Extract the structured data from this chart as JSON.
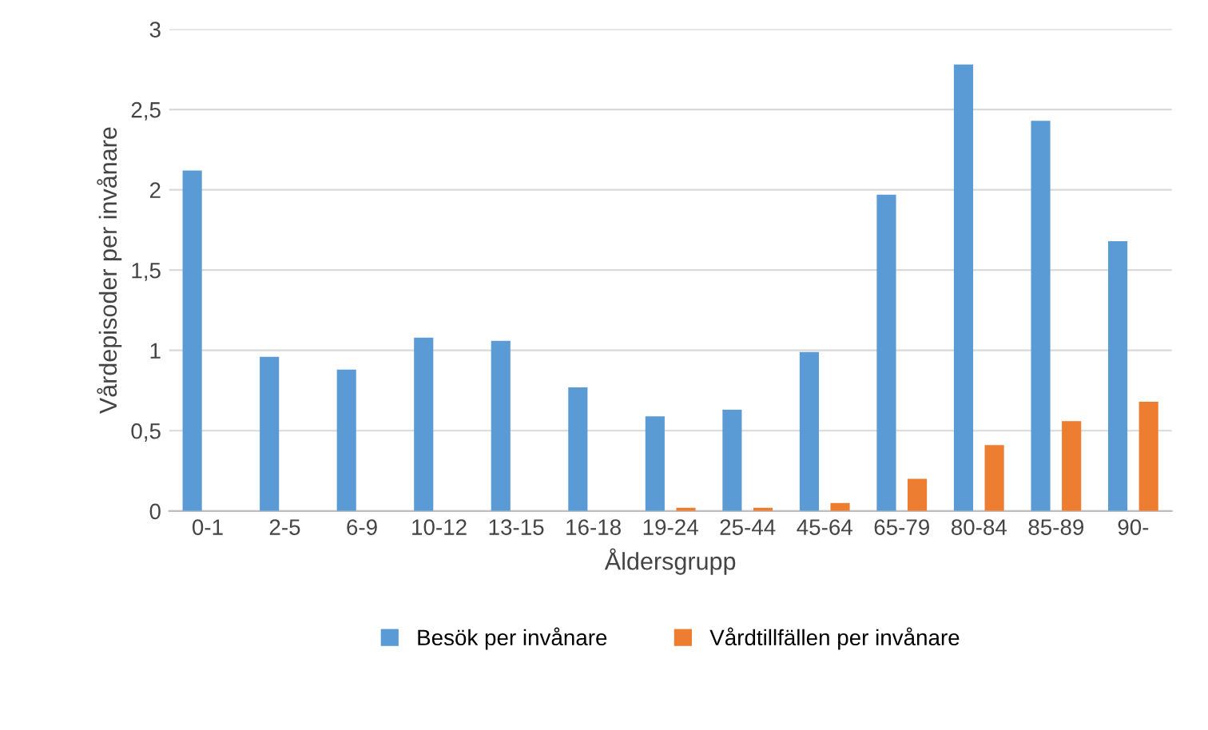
{
  "chart_data": {
    "type": "bar",
    "xlabel": "Åldersgrupp",
    "ylabel": "Vårdepisoder per invånare",
    "categories": [
      "0-1",
      "2-5",
      "6-9",
      "10-12",
      "13-15",
      "16-18",
      "19-24",
      "25-44",
      "45-64",
      "65-79",
      "80-84",
      "85-89",
      "90-"
    ],
    "series": [
      {
        "name": "Besök per invånare",
        "color": "#5b9bd5",
        "values": [
          2.12,
          0.96,
          0.88,
          1.08,
          1.06,
          0.77,
          0.59,
          0.63,
          0.99,
          1.97,
          2.78,
          2.43,
          1.68
        ]
      },
      {
        "name": "Vårdtillfällen per invånare",
        "color": "#ed7d31",
        "values": [
          0,
          0,
          0,
          0,
          0,
          0,
          0.02,
          0.02,
          0.05,
          0.2,
          0.41,
          0.56,
          0.68
        ]
      }
    ],
    "ylim": [
      0,
      3
    ],
    "yticks": [
      0,
      {
        "value": 0.5,
        "label": "0,5"
      },
      1,
      {
        "value": 1.5,
        "label": "1,5"
      },
      2,
      {
        "value": 2.5,
        "label": "2,5"
      },
      3
    ],
    "grid": "y",
    "legend": "bottom"
  }
}
